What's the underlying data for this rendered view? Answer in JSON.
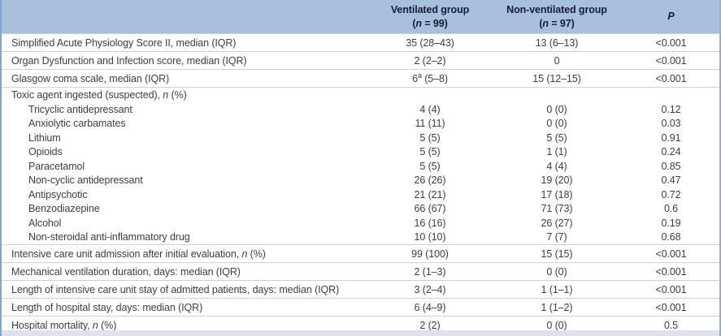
{
  "table": {
    "columns": [
      {
        "title": "Ventilated group",
        "n": "(n = 99)"
      },
      {
        "title": "Non-ventilated group",
        "n": "(n = 97)"
      },
      {
        "title": "P"
      }
    ],
    "rows": [
      {
        "type": "major",
        "label": "Simplified Acute Physiology Score II, median (IQR)",
        "vent": "35 (28–43)",
        "nonvent": "13 (6–13)",
        "p": "<0.001"
      },
      {
        "type": "major",
        "label": "Organ Dysfunction and Infection score, median (IQR)",
        "vent": "2 (2–2)",
        "nonvent": "0",
        "p": "<0.001"
      },
      {
        "type": "major",
        "label": "Glasgow coma scale, median (IQR)",
        "vent": "6^a (5–8)",
        "nonvent": "15 (12–15)",
        "p": "<0.001"
      },
      {
        "type": "group",
        "label": "Toxic agent ingested (suspected), n (%)",
        "vent": "",
        "nonvent": "",
        "p": ""
      },
      {
        "type": "sub",
        "label": "Tricyclic antidepressant",
        "vent": "4 (4)",
        "nonvent": "0 (0)",
        "p": "0.12"
      },
      {
        "type": "sub",
        "label": "Anxiolytic carbamates",
        "vent": "11 (11)",
        "nonvent": "0 (0)",
        "p": "0.03"
      },
      {
        "type": "sub",
        "label": "Lithium",
        "vent": "5 (5)",
        "nonvent": "5 (5)",
        "p": "0.91"
      },
      {
        "type": "sub",
        "label": "Opioids",
        "vent": "5 (5)",
        "nonvent": "1 (1)",
        "p": "0.24"
      },
      {
        "type": "sub",
        "label": "Paracetamol",
        "vent": "5 (5)",
        "nonvent": "4 (4)",
        "p": "0.85"
      },
      {
        "type": "sub",
        "label": "Non-cyclic antidepressant",
        "vent": "26 (26)",
        "nonvent": "19 (20)",
        "p": "0.47"
      },
      {
        "type": "sub",
        "label": "Antipsychotic",
        "vent": "21 (21)",
        "nonvent": "17 (18)",
        "p": "0.72"
      },
      {
        "type": "sub",
        "label": "Benzodiazepine",
        "vent": "66 (67)",
        "nonvent": "71 (73)",
        "p": "0.6"
      },
      {
        "type": "sub",
        "label": "Alcohol",
        "vent": "16 (16)",
        "nonvent": "26 (27)",
        "p": "0.19"
      },
      {
        "type": "sub",
        "label": "Non-steroidal anti-inflammatory drug",
        "vent": "10 (10)",
        "nonvent": "7 (7)",
        "p": "0.68"
      },
      {
        "type": "major",
        "label": "Intensive care unit admission after initial evaluation, n (%)",
        "vent": "99 (100)",
        "nonvent": "15 (15)",
        "p": "<0.001"
      },
      {
        "type": "major",
        "label": "Mechanical ventilation duration, days: median (IQR)",
        "vent": "2 (1–3)",
        "nonvent": "0 (0)",
        "p": "<0.001"
      },
      {
        "type": "major",
        "label": "Length of intensive care unit stay of admitted patients, days: median (IQR)",
        "vent": "3 (2–4)",
        "nonvent": "1 (1–1)",
        "p": "<0.001"
      },
      {
        "type": "major",
        "label": "Length of hospital stay, days: median (IQR)",
        "vent": "6 (4–9)",
        "nonvent": "1 (1–2)",
        "p": "<0.001"
      },
      {
        "type": "major",
        "label": "Hospital mortality, n (%)",
        "vent": "2 (2)",
        "nonvent": "0 (0)",
        "p": "0.5"
      }
    ]
  },
  "colors": {
    "header_bg": "#a8c0de",
    "row_separator": "#bed6ea",
    "side_border": "#7fa6cc",
    "bottom_bar": "#dce2ee",
    "header_text": "#181c33",
    "body_text": "#3e3e3e"
  }
}
